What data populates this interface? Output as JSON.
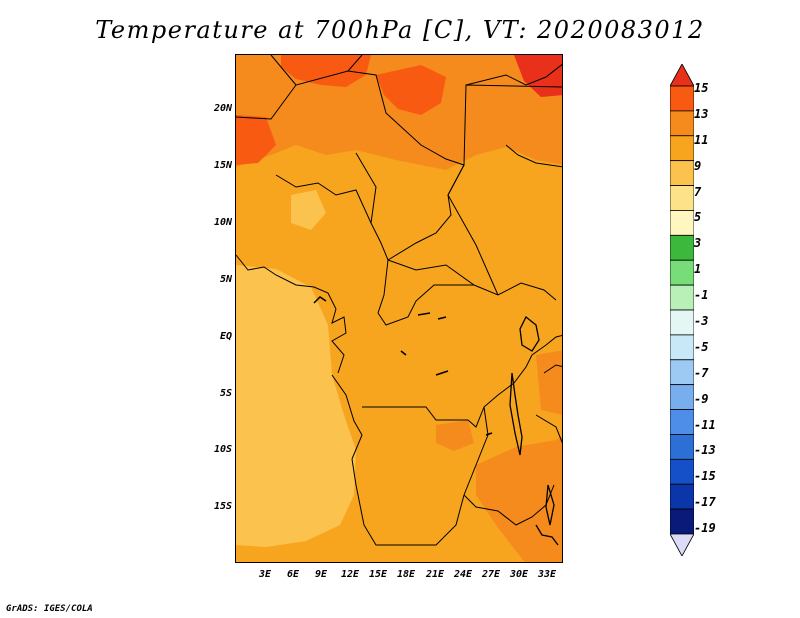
{
  "title": "Temperature at 700hPa [C], VT: 2020083012",
  "credit": "GrADS: IGES/COLA",
  "lat_labels": [
    "20N",
    "15N",
    "10N",
    "5N",
    "EQ",
    "5S",
    "10S",
    "15S"
  ],
  "lon_labels": [
    "3E",
    "6E",
    "9E",
    "12E",
    "15E",
    "18E",
    "21E",
    "24E",
    "27E",
    "30E",
    "33E"
  ],
  "colorbar": {
    "labels": [
      "15",
      "13",
      "11",
      "9",
      "7",
      "5",
      "3",
      "1",
      "-1",
      "-3",
      "-5",
      "-7",
      "-9",
      "-11",
      "-13",
      "-15",
      "-17",
      "-19"
    ],
    "colors": [
      "#e8301a",
      "#f85a12",
      "#f58a1d",
      "#f7a51f",
      "#fbc24e",
      "#fde28a",
      "#fff6c0",
      "#3cb83c",
      "#78dc78",
      "#b8f0b8",
      "#e4f7f4",
      "#c8e8f8",
      "#9ccaf2",
      "#78aeee",
      "#4e8ee8",
      "#2c70d6",
      "#1650c8",
      "#0a36aa",
      "#0a1a78",
      "#dcdcf8"
    ]
  },
  "map_colors": {
    "base": "#f7a51f",
    "warm": "#f58a1d",
    "hot": "#f85a12",
    "cool": "#fbc24e"
  }
}
